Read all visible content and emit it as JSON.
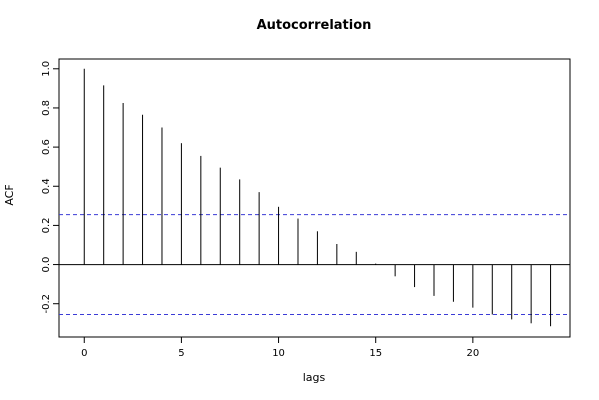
{
  "chart_data": {
    "type": "bar",
    "title": "Autocorrelation",
    "xlabel": "lags",
    "ylabel": "ACF",
    "x": [
      0,
      1,
      2,
      3,
      4,
      5,
      6,
      7,
      8,
      9,
      10,
      11,
      12,
      13,
      14,
      15,
      16,
      17,
      18,
      19,
      20,
      21,
      22,
      23,
      24
    ],
    "values": [
      1.0,
      0.915,
      0.825,
      0.765,
      0.7,
      0.62,
      0.555,
      0.495,
      0.435,
      0.37,
      0.295,
      0.235,
      0.17,
      0.105,
      0.065,
      0.005,
      -0.06,
      -0.115,
      -0.16,
      -0.19,
      -0.22,
      -0.255,
      -0.28,
      -0.3,
      -0.315
    ],
    "confidence_band": [
      -0.255,
      0.255
    ],
    "xlim": [
      -1.3,
      25
    ],
    "ylim": [
      -0.37,
      1.05
    ],
    "xticks": [
      0,
      5,
      10,
      15,
      20
    ],
    "yticks": [
      -0.2,
      0.0,
      0.2,
      0.4,
      0.6,
      0.8,
      1.0
    ],
    "ytick_labels": [
      "-0.2",
      "0.0",
      "0.2",
      "0.4",
      "0.6",
      "0.8",
      "1.0"
    ],
    "grid": false,
    "colors": {
      "bars": "#000000",
      "confidence_lines": "#3b3bd6"
    }
  }
}
